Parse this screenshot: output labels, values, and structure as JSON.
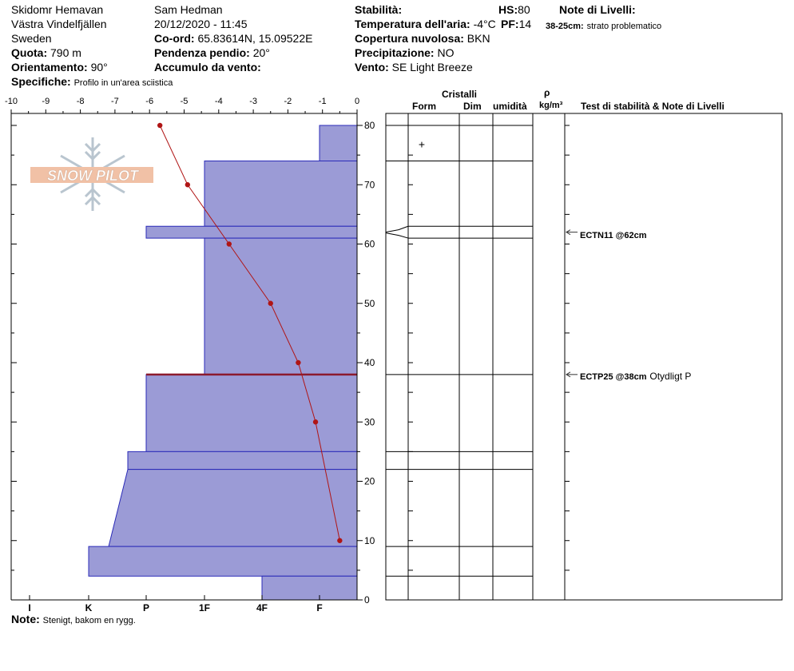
{
  "header": {
    "col1": [
      "Skidomr Hemavan",
      "Västra Vindelfjällen",
      "Sweden"
    ],
    "quota_label": "Quota:",
    "quota_value": "790 m",
    "orient_label": "Orientamento:",
    "orient_value": "90°",
    "specifiche_label": "Specifiche:",
    "specifiche_value": "Profilo in un'area sciistica",
    "observer": "Sam Hedman",
    "datetime": "20/12/2020 - 11:45",
    "coord_label": "Co-ord:",
    "coord_value": "65.83614N, 15.09522E",
    "pendenza_label": "Pendenza pendio:",
    "pendenza_value": "20°",
    "accumulo_label": "Accumulo da vento:",
    "accumulo_value": "",
    "stabilita_label": "Stabilità:",
    "temp_label": "Temperatura dell'aria:",
    "temp_value": "-4°C",
    "copertura_label": "Copertura nuvolosa:",
    "copertura_value": "BKN",
    "precip_label": "Precipitazione:",
    "precip_value": "NO",
    "vento_label": "Vento:",
    "vento_value": "SE  Light Breeze",
    "hs_label": "HS:",
    "hs_value": "80",
    "pf_label": "PF:",
    "pf_value": "14",
    "note_livelli_label": "Note di Livelli:",
    "note_livelli_bold": "38-25cm:",
    "note_livelli_text": "strato problematico"
  },
  "footer": {
    "note_label": "Note:",
    "note_value": "Stenigt, bakom en rygg."
  },
  "logo": {
    "text": "SNOW PILOT"
  },
  "table_headers": {
    "cristalli": "Cristalli",
    "form": "Form",
    "dim": "Dim",
    "umidita": "umidità",
    "rho": "ρ",
    "rho_unit": "kg/m³",
    "test": "Test di stabilità & Note di Livelli"
  },
  "tests": [
    {
      "label": "ECTN11 @62cm",
      "extra": "",
      "height": 62
    },
    {
      "label": "ECTP25 @38cm",
      "extra": "Otydligt P",
      "height": 38
    }
  ],
  "form_marks": [
    {
      "symbol": "+",
      "height": 77
    }
  ],
  "chart_data": {
    "type": "snow_profile",
    "temperature_axis": {
      "ticks": [
        -10,
        -9,
        -8,
        -7,
        -6,
        -5,
        -4,
        -3,
        -2,
        -1,
        0
      ],
      "range": [
        -10,
        0
      ]
    },
    "height_axis": {
      "ticks": [
        0,
        10,
        20,
        30,
        40,
        50,
        60,
        70,
        80
      ],
      "range": [
        0,
        80
      ]
    },
    "hardness_axis": {
      "labels": [
        "I",
        "K",
        "P",
        "1F",
        "4F",
        "F"
      ]
    },
    "temperature_profile": [
      {
        "height": 80,
        "temp": -5.7
      },
      {
        "height": 70,
        "temp": -4.9
      },
      {
        "height": 60,
        "temp": -3.7
      },
      {
        "height": 50,
        "temp": -2.5
      },
      {
        "height": 40,
        "temp": -1.7
      },
      {
        "height": 30,
        "temp": -1.2
      },
      {
        "height": 10,
        "temp": -0.5
      }
    ],
    "layers": [
      {
        "top": 80,
        "bottom": 74,
        "hardness_top": "F",
        "hardness_bottom": "F"
      },
      {
        "top": 74,
        "bottom": 63,
        "hardness_top": "1F",
        "hardness_bottom": "1F"
      },
      {
        "top": 63,
        "bottom": 61,
        "hardness_top": "P",
        "hardness_bottom": "P"
      },
      {
        "top": 61,
        "bottom": 38,
        "hardness_top": "1F",
        "hardness_bottom": "1F"
      },
      {
        "top": 38,
        "bottom": 25,
        "hardness_top": "P",
        "hardness_bottom": "P"
      },
      {
        "top": 25,
        "bottom": 22,
        "hardness_top": "P-",
        "hardness_bottom": "P-"
      },
      {
        "top": 22,
        "bottom": 9,
        "hardness_top": "P-",
        "hardness_bottom": "K+"
      },
      {
        "top": 9,
        "bottom": 4,
        "hardness_top": "K",
        "hardness_bottom": "K"
      },
      {
        "top": 4,
        "bottom": 0,
        "hardness_top": "4F",
        "hardness_bottom": "4F"
      }
    ],
    "colors": {
      "layer_fill": "#9b9bd6",
      "layer_stroke": "#2b2bb8",
      "temp_line": "#b01515",
      "problem_line": "#8b1a2e"
    }
  }
}
